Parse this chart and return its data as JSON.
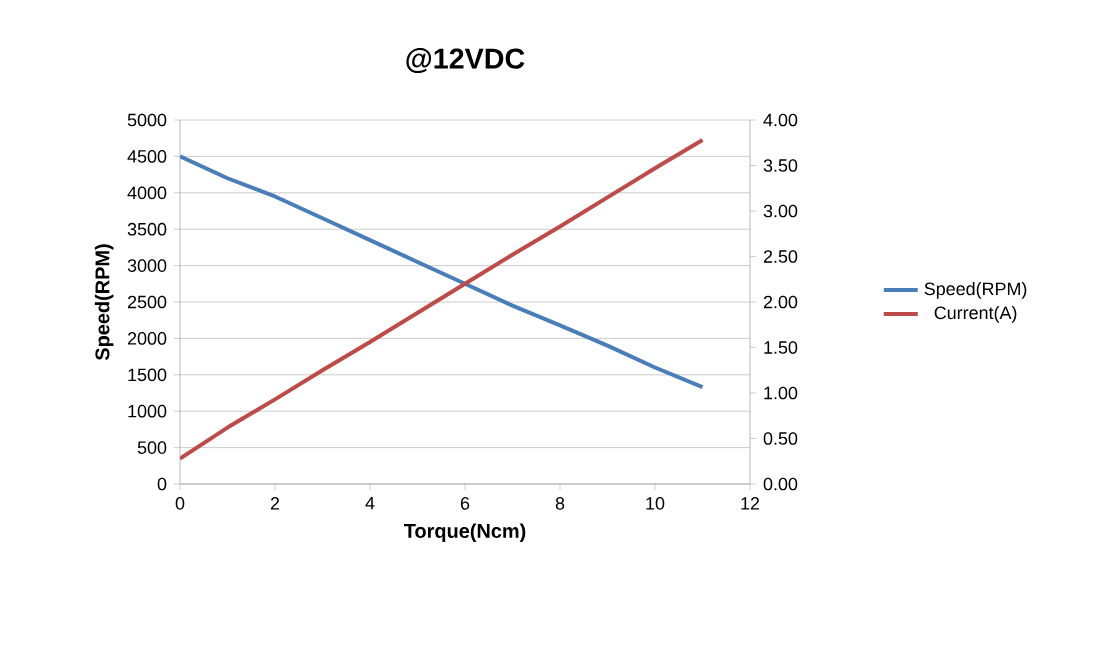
{
  "chart_data": {
    "type": "line",
    "title": "@12VDC",
    "xlabel": "Torque(Ncm)",
    "ylabel": "Speed(RPM)",
    "x": [
      0,
      1,
      2,
      3,
      4,
      5,
      6,
      7,
      8,
      9,
      10,
      11
    ],
    "series": [
      {
        "name": "Speed(RPM)",
        "color": "#4a7ebb",
        "values": [
          4500,
          4200,
          3950,
          3650,
          3350,
          3050,
          2750,
          2450,
          2180,
          1900,
          1600,
          1330
        ]
      },
      {
        "name": "Current(A)",
        "color": "#be4b48",
        "axis": "y2",
        "values": [
          0.28,
          0.62,
          0.93,
          1.25,
          1.56,
          1.88,
          2.2,
          2.52,
          2.83,
          3.15,
          3.47,
          3.78
        ]
      }
    ],
    "xlim": [
      0,
      12
    ],
    "xticks": [
      0,
      2,
      4,
      6,
      8,
      10,
      12
    ],
    "ylim": [
      0,
      5000
    ],
    "yticks": [
      0,
      500,
      1000,
      1500,
      2000,
      2500,
      3000,
      3500,
      4000,
      4500,
      5000
    ],
    "y2lim": [
      0,
      4
    ],
    "y2ticks": [
      {
        "value": 0,
        "label": "0.00"
      },
      {
        "value": 0.5,
        "label": "0.50"
      },
      {
        "value": 1,
        "label": "1.00"
      },
      {
        "value": 1.5,
        "label": "1.50"
      },
      {
        "value": 2,
        "label": "2.00"
      },
      {
        "value": 2.5,
        "label": "2.50"
      },
      {
        "value": 3,
        "label": "3.00"
      },
      {
        "value": 3.5,
        "label": "3.50"
      },
      {
        "value": 4,
        "label": "4.00"
      }
    ],
    "grid": "y",
    "legend": "right",
    "marker": "none",
    "line_style": "solid"
  }
}
